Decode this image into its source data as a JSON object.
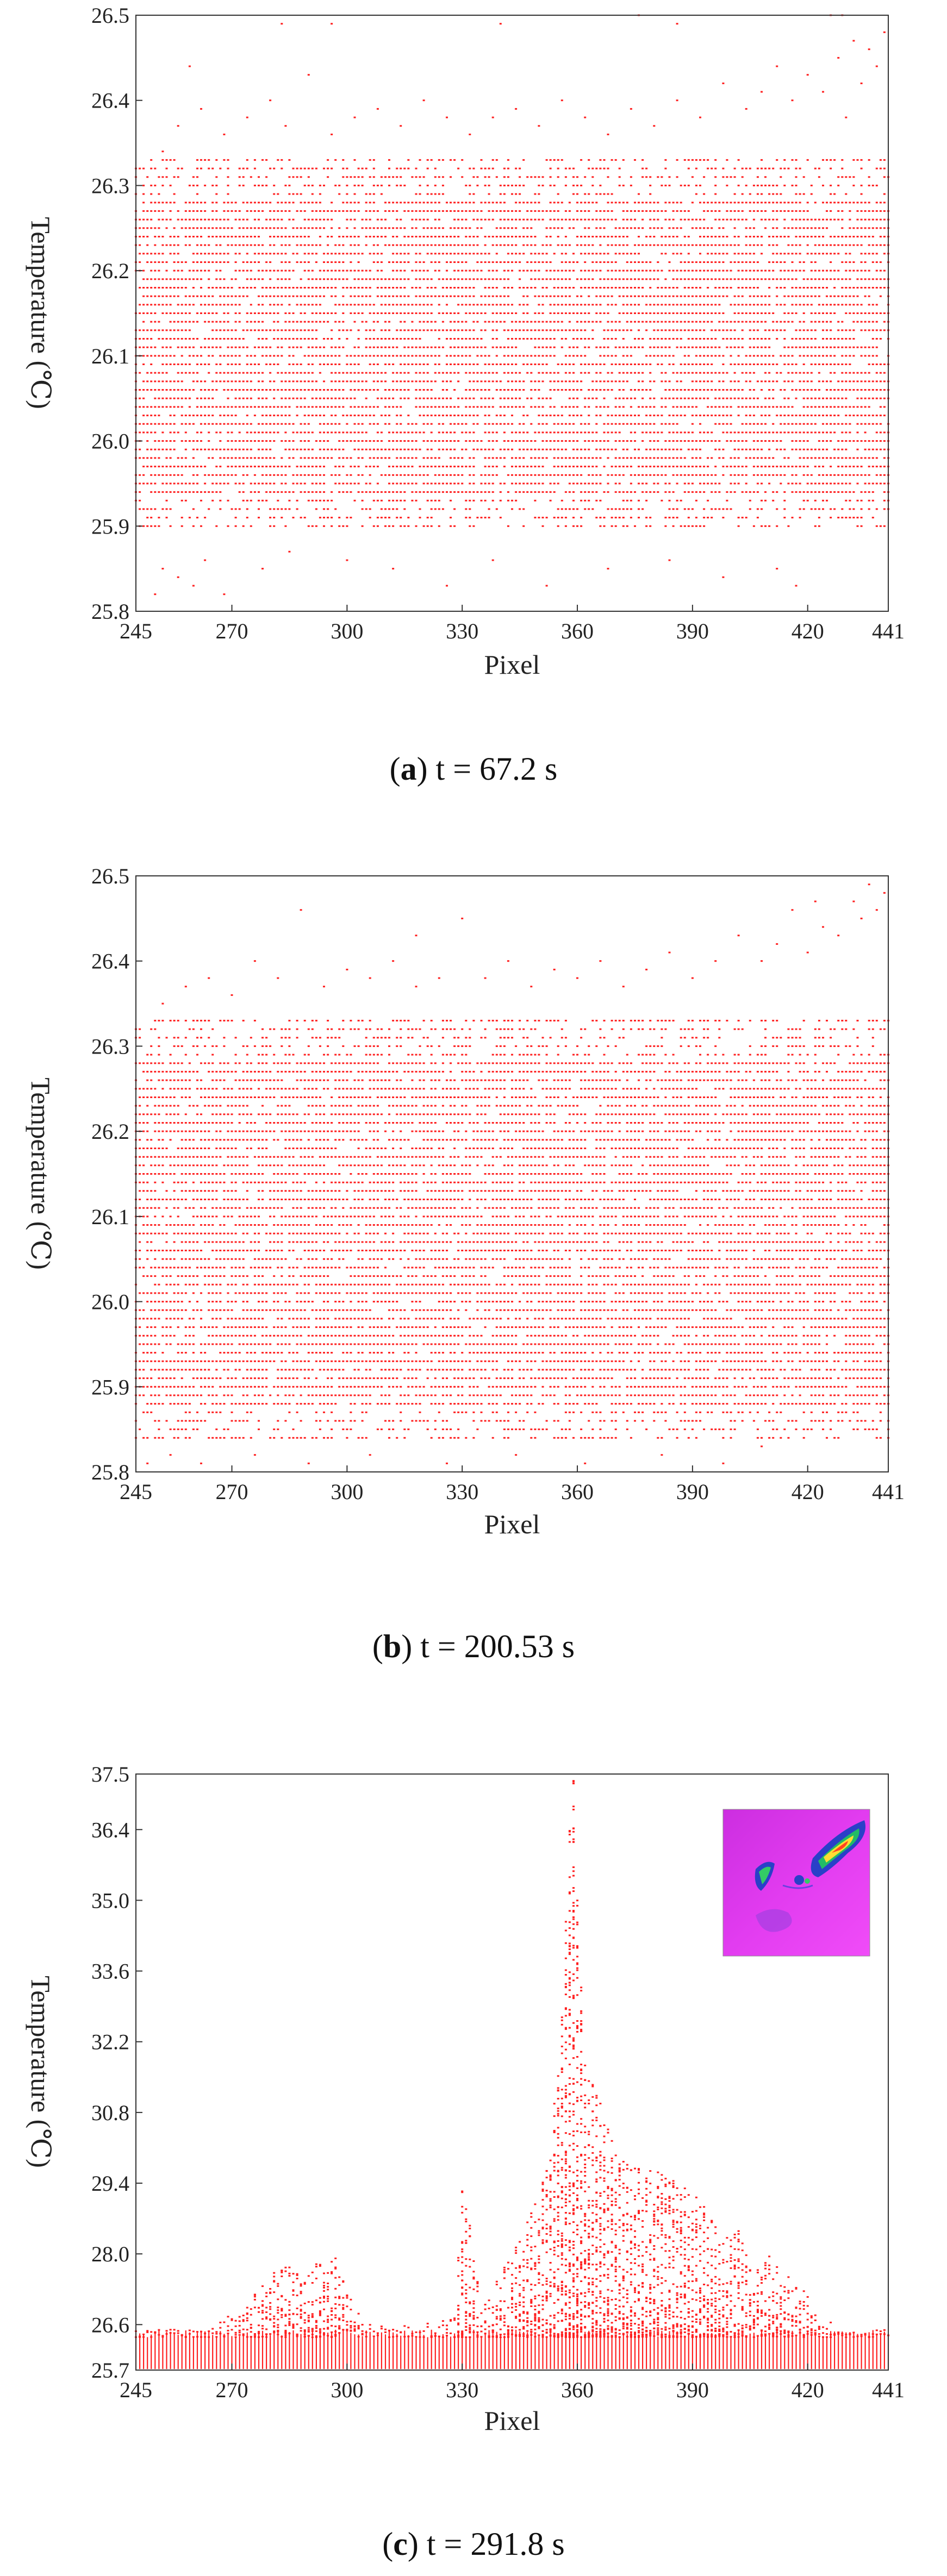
{
  "chart_data": [
    {
      "type": "scatter",
      "panel": "a",
      "caption_letter": "a",
      "caption_text": "t = 67.2 s",
      "xlabel": "Pixel",
      "ylabel": "Temperature (℃)",
      "xlim": [
        245,
        441
      ],
      "ylim": [
        25.8,
        26.5
      ],
      "xticks": [
        245,
        270,
        300,
        330,
        360,
        390,
        420,
        441
      ],
      "xtick_labels": [
        "245",
        "270",
        "300",
        "330",
        "360",
        "390",
        "420",
        "441"
      ],
      "yticks": [
        25.8,
        25.9,
        26.0,
        26.1,
        26.2,
        26.3,
        26.4,
        26.5
      ],
      "ytick_labels": [
        "25.8",
        "25.9",
        "26.0",
        "26.1",
        "26.2",
        "26.3",
        "26.4",
        "26.5"
      ],
      "grid": false,
      "marker_color": "#ff2020",
      "band_lower": 25.9,
      "band_upper": 26.33,
      "points": [
        [
          250,
          25.82
        ],
        [
          252,
          25.85
        ],
        [
          256,
          25.84
        ],
        [
          260,
          25.83
        ],
        [
          263,
          25.86
        ],
        [
          268,
          25.82
        ],
        [
          278,
          25.85
        ],
        [
          285,
          25.87
        ],
        [
          300,
          25.86
        ],
        [
          312,
          25.85
        ],
        [
          326,
          25.83
        ],
        [
          338,
          25.86
        ],
        [
          352,
          25.83
        ],
        [
          368,
          25.85
        ],
        [
          384,
          25.86
        ],
        [
          398,
          25.84
        ],
        [
          412,
          25.85
        ],
        [
          417,
          25.83
        ],
        [
          252,
          26.34
        ],
        [
          256,
          26.37
        ],
        [
          262,
          26.39
        ],
        [
          268,
          26.36
        ],
        [
          274,
          26.38
        ],
        [
          280,
          26.4
        ],
        [
          284,
          26.37
        ],
        [
          290,
          26.43
        ],
        [
          296,
          26.36
        ],
        [
          302,
          26.38
        ],
        [
          308,
          26.39
        ],
        [
          314,
          26.37
        ],
        [
          320,
          26.4
        ],
        [
          326,
          26.38
        ],
        [
          332,
          26.36
        ],
        [
          338,
          26.38
        ],
        [
          344,
          26.39
        ],
        [
          350,
          26.37
        ],
        [
          356,
          26.4
        ],
        [
          362,
          26.38
        ],
        [
          368,
          26.36
        ],
        [
          374,
          26.39
        ],
        [
          380,
          26.37
        ],
        [
          386,
          26.4
        ],
        [
          392,
          26.38
        ],
        [
          398,
          26.42
        ],
        [
          404,
          26.39
        ],
        [
          408,
          26.41
        ],
        [
          412,
          26.44
        ],
        [
          416,
          26.4
        ],
        [
          420,
          26.43
        ],
        [
          424,
          26.41
        ],
        [
          428,
          26.45
        ],
        [
          430,
          26.38
        ],
        [
          432,
          26.47
        ],
        [
          434,
          26.42
        ],
        [
          436,
          26.46
        ],
        [
          438,
          26.44
        ],
        [
          440,
          26.48
        ],
        [
          259,
          26.44
        ],
        [
          283,
          26.49
        ],
        [
          296,
          26.49
        ],
        [
          340,
          26.49
        ],
        [
          376,
          26.5
        ],
        [
          386,
          26.49
        ],
        [
          426,
          26.5
        ],
        [
          429,
          26.5
        ]
      ]
    },
    {
      "type": "scatter",
      "panel": "b",
      "caption_letter": "b",
      "caption_text": "t = 200.53 s",
      "xlabel": "Pixel",
      "ylabel": "Temperature (℃)",
      "xlim": [
        245,
        441
      ],
      "ylim": [
        25.8,
        26.5
      ],
      "xticks": [
        245,
        270,
        300,
        330,
        360,
        390,
        420,
        441
      ],
      "xtick_labels": [
        "245",
        "270",
        "300",
        "330",
        "360",
        "390",
        "420",
        "441"
      ],
      "yticks": [
        25.8,
        25.9,
        26.0,
        26.1,
        26.2,
        26.3,
        26.4,
        26.5
      ],
      "ytick_labels": [
        "25.8",
        "25.9",
        "26.0",
        "26.1",
        "26.2",
        "26.3",
        "26.4",
        "26.5"
      ],
      "grid": false,
      "marker_color": "#ff2020",
      "band_lower": 25.84,
      "band_upper": 26.33,
      "points": [
        [
          248,
          25.81
        ],
        [
          254,
          25.82
        ],
        [
          262,
          25.81
        ],
        [
          276,
          25.82
        ],
        [
          290,
          25.81
        ],
        [
          306,
          25.82
        ],
        [
          326,
          25.81
        ],
        [
          344,
          25.82
        ],
        [
          362,
          25.81
        ],
        [
          382,
          25.82
        ],
        [
          398,
          25.81
        ],
        [
          408,
          25.83
        ],
        [
          252,
          26.35
        ],
        [
          258,
          26.37
        ],
        [
          264,
          26.38
        ],
        [
          270,
          26.36
        ],
        [
          276,
          26.4
        ],
        [
          282,
          26.38
        ],
        [
          288,
          26.46
        ],
        [
          294,
          26.37
        ],
        [
          300,
          26.39
        ],
        [
          306,
          26.38
        ],
        [
          312,
          26.4
        ],
        [
          318,
          26.37
        ],
        [
          324,
          26.38
        ],
        [
          330,
          26.45
        ],
        [
          336,
          26.38
        ],
        [
          342,
          26.4
        ],
        [
          348,
          26.37
        ],
        [
          354,
          26.39
        ],
        [
          360,
          26.38
        ],
        [
          366,
          26.4
        ],
        [
          372,
          26.37
        ],
        [
          378,
          26.39
        ],
        [
          384,
          26.41
        ],
        [
          390,
          26.38
        ],
        [
          396,
          26.4
        ],
        [
          402,
          26.43
        ],
        [
          408,
          26.4
        ],
        [
          412,
          26.42
        ],
        [
          416,
          26.46
        ],
        [
          420,
          26.41
        ],
        [
          424,
          26.44
        ],
        [
          428,
          26.43
        ],
        [
          432,
          26.47
        ],
        [
          434,
          26.45
        ],
        [
          436,
          26.49
        ],
        [
          438,
          26.46
        ],
        [
          440,
          26.48
        ],
        [
          422,
          26.47
        ],
        [
          318,
          26.43
        ]
      ]
    },
    {
      "type": "scatter",
      "panel": "c",
      "caption_letter": "c",
      "caption_text": "t = 291.8 s",
      "xlabel": "Pixel",
      "ylabel": "Temperature (℃)",
      "xlim": [
        245,
        441
      ],
      "ylim": [
        25.7,
        37.5
      ],
      "xticks": [
        245,
        270,
        300,
        330,
        360,
        390,
        420,
        441
      ],
      "xtick_labels": [
        "245",
        "270",
        "300",
        "330",
        "360",
        "390",
        "420",
        "441"
      ],
      "yticks": [
        25.7,
        26.6,
        28.0,
        29.4,
        30.8,
        32.2,
        33.6,
        35.0,
        36.4,
        37.5
      ],
      "ytick_labels": [
        "25.7",
        "26.6",
        "28.0",
        "29.4",
        "30.8",
        "32.2",
        "33.6",
        "35.0",
        "36.4",
        "37.5"
      ],
      "grid": false,
      "marker_color": "#ff2020",
      "band_lower": 25.7,
      "band_upper": 26.35,
      "upper_envelope": [
        [
          245,
          26.5
        ],
        [
          260,
          26.5
        ],
        [
          268,
          26.7
        ],
        [
          275,
          27.2
        ],
        [
          280,
          27.6
        ],
        [
          285,
          27.8
        ],
        [
          290,
          27.6
        ],
        [
          293,
          27.9
        ],
        [
          297,
          28.0
        ],
        [
          300,
          27.3
        ],
        [
          305,
          26.6
        ],
        [
          320,
          26.6
        ],
        [
          328,
          26.8
        ],
        [
          330,
          29.3
        ],
        [
          332,
          28.6
        ],
        [
          335,
          26.9
        ],
        [
          340,
          27.6
        ],
        [
          345,
          28.3
        ],
        [
          350,
          29.2
        ],
        [
          353,
          30.0
        ],
        [
          356,
          33.0
        ],
        [
          358,
          36.5
        ],
        [
          359,
          37.5
        ],
        [
          360,
          35.0
        ],
        [
          362,
          31.8
        ],
        [
          366,
          31.0
        ],
        [
          370,
          30.0
        ],
        [
          376,
          29.7
        ],
        [
          382,
          29.6
        ],
        [
          388,
          29.3
        ],
        [
          393,
          29.0
        ],
        [
          398,
          28.3
        ],
        [
          402,
          28.5
        ],
        [
          406,
          27.7
        ],
        [
          410,
          28.0
        ],
        [
          415,
          27.6
        ],
        [
          420,
          27.2
        ],
        [
          425,
          26.7
        ],
        [
          430,
          26.5
        ],
        [
          441,
          26.5
        ]
      ],
      "inset": "thermal-image"
    }
  ],
  "captions": {
    "a": {
      "letter": "a",
      "text": "t = 67.2 s"
    },
    "b": {
      "letter": "b",
      "text": "t = 200.53 s"
    },
    "c": {
      "letter": "c",
      "text": "t = 291.8 s"
    }
  }
}
